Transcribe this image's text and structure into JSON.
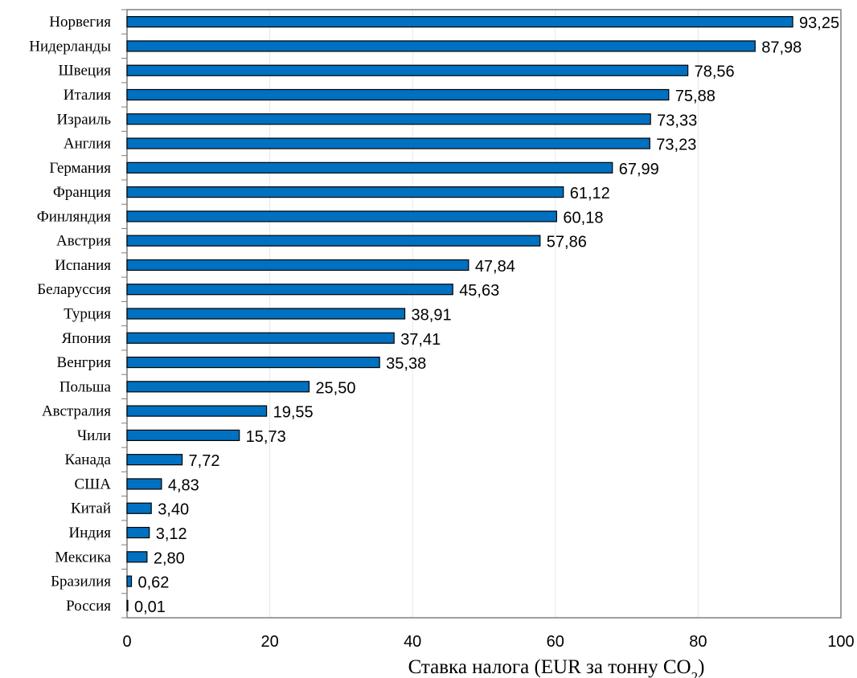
{
  "chart_data": {
    "type": "bar",
    "orientation": "horizontal",
    "categories": [
      "Норвегия",
      "Нидерланды",
      "Швеция",
      "Италия",
      "Израиль",
      "Англия",
      "Германия",
      "Франция",
      "Финляндия",
      "Австрия",
      "Испания",
      "Беларуссия",
      "Турция",
      "Япония",
      "Венгрия",
      "Польша",
      "Австралия",
      "Чили",
      "Канада",
      "США",
      "Китай",
      "Индия",
      "Мексика",
      "Бразилия",
      "Россия"
    ],
    "values": [
      93.25,
      87.98,
      78.56,
      75.88,
      73.33,
      73.23,
      67.99,
      61.12,
      60.18,
      57.86,
      47.84,
      45.63,
      38.91,
      37.41,
      35.38,
      25.5,
      19.55,
      15.73,
      7.72,
      4.83,
      3.4,
      3.12,
      2.8,
      0.62,
      0.01
    ],
    "value_labels": [
      "93,25",
      "87,98",
      "78,56",
      "75,88",
      "73,33",
      "73,23",
      "67,99",
      "61,12",
      "60,18",
      "57,86",
      "47,84",
      "45,63",
      "38,91",
      "37,41",
      "35,38",
      "25,50",
      "19,55",
      "15,73",
      "7,72",
      "4,83",
      "3,40",
      "3,12",
      "2,80",
      "0,62",
      "0,01"
    ],
    "title": "",
    "xlabel_main": "Ставка налога (EUR за тонну CO",
    "xlabel_sub": "2",
    "xlabel_tail": ")",
    "ylabel": "",
    "xlim": [
      0,
      100
    ],
    "x_ticks": [
      0,
      20,
      40,
      60,
      80,
      100
    ],
    "x_tick_labels": [
      "0",
      "20",
      "40",
      "60",
      "80",
      "100"
    ],
    "grid": "vertical",
    "legend": "none",
    "bar_color": "#0070C0"
  }
}
